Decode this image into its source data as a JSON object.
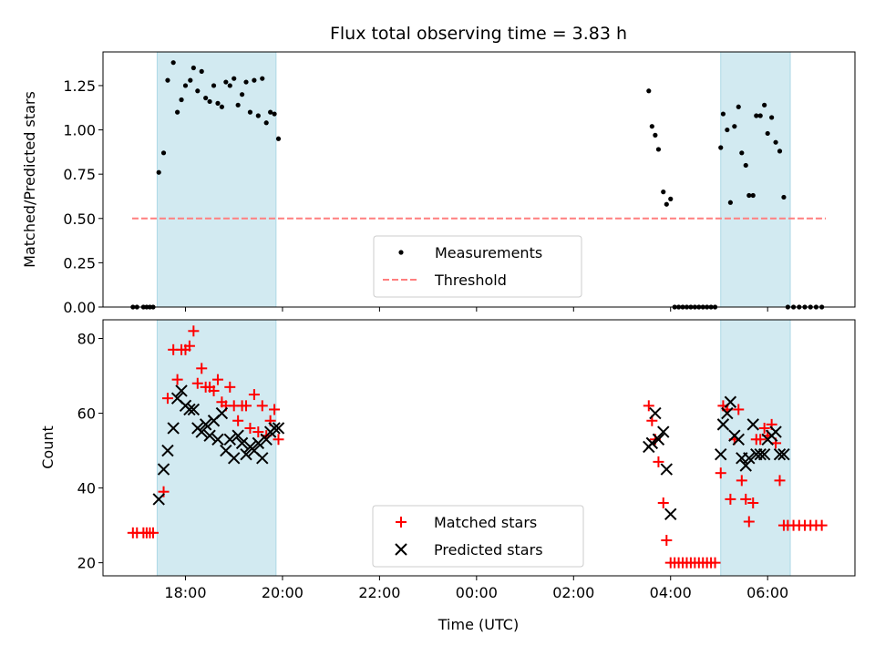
{
  "chart_data": {
    "type": "scatter",
    "title": "Flux total observing time = 3.83 h",
    "xlabel": "Time (UTC)",
    "x_ticks": [
      "18:00",
      "20:00",
      "22:00",
      "00:00",
      "02:00",
      "04:00",
      "06:00"
    ],
    "x_range_hours": [
      16.3,
      31.8
    ],
    "shaded_regions": [
      {
        "start": "17:25",
        "end": "19:52"
      },
      {
        "start": "05:02",
        "end": "06:28"
      }
    ],
    "colors": {
      "shade": "#add8e6",
      "threshold": "#ff7f7f",
      "measurement": "#000000",
      "matched": "#ff0000",
      "predicted": "#000000"
    },
    "top": {
      "ylabel": "Matched/Predicted stars",
      "ylim": [
        0,
        1.44
      ],
      "y_ticks": [
        "0.00",
        "0.25",
        "0.50",
        "0.75",
        "1.00",
        "1.25"
      ],
      "threshold": {
        "value": 0.5,
        "x_start": "16:54",
        "x_end": "07:12"
      },
      "legend": [
        "Measurements",
        "Threshold"
      ],
      "series": [
        {
          "name": "Measurements",
          "points": [
            [
              "16:55",
              0
            ],
            [
              "17:00",
              0
            ],
            [
              "17:08",
              0
            ],
            [
              "17:12",
              0
            ],
            [
              "17:16",
              0
            ],
            [
              "17:20",
              0
            ],
            [
              "17:27",
              0.76
            ],
            [
              "17:33",
              0.87
            ],
            [
              "17:38",
              1.28
            ],
            [
              "17:45",
              1.38
            ],
            [
              "17:50",
              1.1
            ],
            [
              "17:55",
              1.17
            ],
            [
              "18:00",
              1.25
            ],
            [
              "18:06",
              1.28
            ],
            [
              "18:10",
              1.35
            ],
            [
              "18:15",
              1.22
            ],
            [
              "18:20",
              1.33
            ],
            [
              "18:25",
              1.18
            ],
            [
              "18:30",
              1.16
            ],
            [
              "18:35",
              1.25
            ],
            [
              "18:40",
              1.15
            ],
            [
              "18:45",
              1.13
            ],
            [
              "18:50",
              1.27
            ],
            [
              "18:55",
              1.25
            ],
            [
              "19:00",
              1.29
            ],
            [
              "19:05",
              1.14
            ],
            [
              "19:10",
              1.2
            ],
            [
              "19:15",
              1.27
            ],
            [
              "19:20",
              1.1
            ],
            [
              "19:25",
              1.28
            ],
            [
              "19:30",
              1.08
            ],
            [
              "19:35",
              1.29
            ],
            [
              "19:40",
              1.04
            ],
            [
              "19:45",
              1.1
            ],
            [
              "19:50",
              1.09
            ],
            [
              "19:55",
              0.95
            ],
            [
              "03:33",
              1.22
            ],
            [
              "03:37",
              1.02
            ],
            [
              "03:41",
              0.97
            ],
            [
              "03:45",
              0.89
            ],
            [
              "03:51",
              0.65
            ],
            [
              "03:55",
              0.58
            ],
            [
              "04:00",
              0.61
            ],
            [
              "04:05",
              0
            ],
            [
              "04:10",
              0
            ],
            [
              "04:15",
              0
            ],
            [
              "04:20",
              0
            ],
            [
              "04:25",
              0
            ],
            [
              "04:30",
              0
            ],
            [
              "04:35",
              0
            ],
            [
              "04:40",
              0
            ],
            [
              "04:45",
              0
            ],
            [
              "04:50",
              0
            ],
            [
              "04:55",
              0
            ],
            [
              "05:02",
              0.9
            ],
            [
              "05:05",
              1.09
            ],
            [
              "05:10",
              1.0
            ],
            [
              "05:14",
              0.59
            ],
            [
              "05:19",
              1.02
            ],
            [
              "05:24",
              1.13
            ],
            [
              "05:28",
              0.87
            ],
            [
              "05:33",
              0.8
            ],
            [
              "05:37",
              0.63
            ],
            [
              "05:42",
              0.63
            ],
            [
              "05:46",
              1.08
            ],
            [
              "05:51",
              1.08
            ],
            [
              "05:56",
              1.14
            ],
            [
              "06:00",
              0.98
            ],
            [
              "06:05",
              1.07
            ],
            [
              "06:10",
              0.93
            ],
            [
              "06:15",
              0.88
            ],
            [
              "06:20",
              0.62
            ],
            [
              "06:25",
              0
            ],
            [
              "06:32",
              0
            ],
            [
              "06:39",
              0
            ],
            [
              "06:46",
              0
            ],
            [
              "06:53",
              0
            ],
            [
              "07:00",
              0
            ],
            [
              "07:07",
              0
            ]
          ]
        }
      ]
    },
    "bottom": {
      "ylabel": "Count",
      "ylim": [
        16.5,
        85
      ],
      "y_ticks": [
        "20",
        "40",
        "60",
        "80"
      ],
      "legend": [
        "Matched stars",
        "Predicted stars"
      ],
      "series": [
        {
          "name": "Matched stars",
          "points": [
            [
              "16:55",
              28
            ],
            [
              "17:00",
              28
            ],
            [
              "17:08",
              28
            ],
            [
              "17:12",
              28
            ],
            [
              "17:16",
              28
            ],
            [
              "17:20",
              28
            ],
            [
              "17:33",
              39
            ],
            [
              "17:38",
              64
            ],
            [
              "17:45",
              77
            ],
            [
              "17:50",
              69
            ],
            [
              "17:55",
              77
            ],
            [
              "18:00",
              77
            ],
            [
              "18:05",
              78
            ],
            [
              "18:10",
              82
            ],
            [
              "18:15",
              68
            ],
            [
              "18:20",
              72
            ],
            [
              "18:25",
              67
            ],
            [
              "18:30",
              67
            ],
            [
              "18:35",
              66
            ],
            [
              "18:40",
              69
            ],
            [
              "18:45",
              63
            ],
            [
              "18:50",
              62
            ],
            [
              "18:55",
              67
            ],
            [
              "19:00",
              62
            ],
            [
              "19:05",
              58
            ],
            [
              "19:10",
              62
            ],
            [
              "19:15",
              62
            ],
            [
              "19:20",
              56
            ],
            [
              "19:25",
              65
            ],
            [
              "19:30",
              55
            ],
            [
              "19:35",
              62
            ],
            [
              "19:40",
              54
            ],
            [
              "19:45",
              58
            ],
            [
              "19:50",
              61
            ],
            [
              "19:55",
              53
            ],
            [
              "03:33",
              62
            ],
            [
              "03:37",
              58
            ],
            [
              "03:41",
              53
            ],
            [
              "03:45",
              47
            ],
            [
              "03:51",
              36
            ],
            [
              "03:55",
              26
            ],
            [
              "04:00",
              20
            ],
            [
              "04:05",
              20
            ],
            [
              "04:10",
              20
            ],
            [
              "04:15",
              20
            ],
            [
              "04:20",
              20
            ],
            [
              "04:25",
              20
            ],
            [
              "04:30",
              20
            ],
            [
              "04:35",
              20
            ],
            [
              "04:40",
              20
            ],
            [
              "04:45",
              20
            ],
            [
              "04:50",
              20
            ],
            [
              "04:55",
              20
            ],
            [
              "05:02",
              44
            ],
            [
              "05:05",
              62
            ],
            [
              "05:10",
              61
            ],
            [
              "05:14",
              37
            ],
            [
              "05:19",
              53
            ],
            [
              "05:24",
              61
            ],
            [
              "05:28",
              42
            ],
            [
              "05:33",
              37
            ],
            [
              "05:37",
              31
            ],
            [
              "05:42",
              36
            ],
            [
              "05:46",
              53
            ],
            [
              "05:51",
              53
            ],
            [
              "05:56",
              56
            ],
            [
              "06:00",
              54
            ],
            [
              "06:05",
              57
            ],
            [
              "06:10",
              52
            ],
            [
              "06:15",
              42
            ],
            [
              "06:20",
              30
            ],
            [
              "06:25",
              30
            ],
            [
              "06:32",
              30
            ],
            [
              "06:39",
              30
            ],
            [
              "06:46",
              30
            ],
            [
              "06:53",
              30
            ],
            [
              "07:00",
              30
            ],
            [
              "07:07",
              30
            ]
          ]
        },
        {
          "name": "Predicted stars",
          "points": [
            [
              "17:27",
              37
            ],
            [
              "17:33",
              45
            ],
            [
              "17:38",
              50
            ],
            [
              "17:45",
              56
            ],
            [
              "17:50",
              64
            ],
            [
              "17:55",
              66
            ],
            [
              "18:00",
              62
            ],
            [
              "18:05",
              61
            ],
            [
              "18:10",
              61
            ],
            [
              "18:15",
              56
            ],
            [
              "18:20",
              55
            ],
            [
              "18:25",
              57
            ],
            [
              "18:30",
              54
            ],
            [
              "18:35",
              58
            ],
            [
              "18:40",
              53
            ],
            [
              "18:45",
              60
            ],
            [
              "18:50",
              50
            ],
            [
              "18:55",
              53
            ],
            [
              "19:00",
              48
            ],
            [
              "19:05",
              54
            ],
            [
              "19:10",
              52
            ],
            [
              "19:15",
              49
            ],
            [
              "19:20",
              51
            ],
            [
              "19:25",
              50
            ],
            [
              "19:30",
              52
            ],
            [
              "19:35",
              48
            ],
            [
              "19:40",
              53
            ],
            [
              "19:45",
              55
            ],
            [
              "19:50",
              56
            ],
            [
              "19:55",
              56
            ],
            [
              "03:33",
              51
            ],
            [
              "03:37",
              52
            ],
            [
              "03:41",
              60
            ],
            [
              "03:45",
              53
            ],
            [
              "03:51",
              55
            ],
            [
              "03:55",
              45
            ],
            [
              "04:00",
              33
            ],
            [
              "05:02",
              49
            ],
            [
              "05:05",
              57
            ],
            [
              "05:10",
              60
            ],
            [
              "05:14",
              63
            ],
            [
              "05:19",
              54
            ],
            [
              "05:24",
              53
            ],
            [
              "05:28",
              48
            ],
            [
              "05:33",
              46
            ],
            [
              "05:37",
              48
            ],
            [
              "05:42",
              57
            ],
            [
              "05:46",
              49
            ],
            [
              "05:51",
              49
            ],
            [
              "05:56",
              49
            ],
            [
              "06:00",
              53
            ],
            [
              "06:05",
              54
            ],
            [
              "06:10",
              55
            ],
            [
              "06:15",
              49
            ],
            [
              "06:20",
              49
            ]
          ]
        }
      ]
    }
  }
}
